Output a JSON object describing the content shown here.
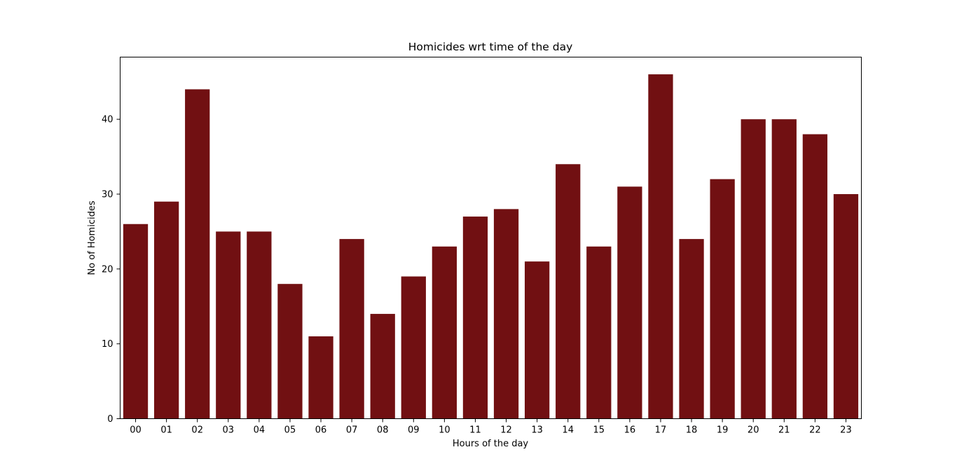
{
  "chart_data": {
    "type": "bar",
    "title": "Homicides wrt time of the day",
    "xlabel": "Hours of the day",
    "ylabel": "No of Homicides",
    "categories": [
      "00",
      "01",
      "02",
      "03",
      "04",
      "05",
      "06",
      "07",
      "08",
      "09",
      "10",
      "11",
      "12",
      "13",
      "14",
      "15",
      "16",
      "17",
      "18",
      "19",
      "20",
      "21",
      "22",
      "23"
    ],
    "values": [
      26,
      29,
      44,
      25,
      25,
      18,
      11,
      24,
      14,
      19,
      23,
      27,
      28,
      21,
      34,
      23,
      31,
      46,
      24,
      32,
      40,
      40,
      38,
      30
    ],
    "ylim": [
      0,
      48.3
    ],
    "yticks": [
      0,
      10,
      20,
      30,
      40
    ],
    "grid": false,
    "colors": {
      "bar": "#711012",
      "axis": "#000000",
      "background": "#ffffff"
    }
  }
}
